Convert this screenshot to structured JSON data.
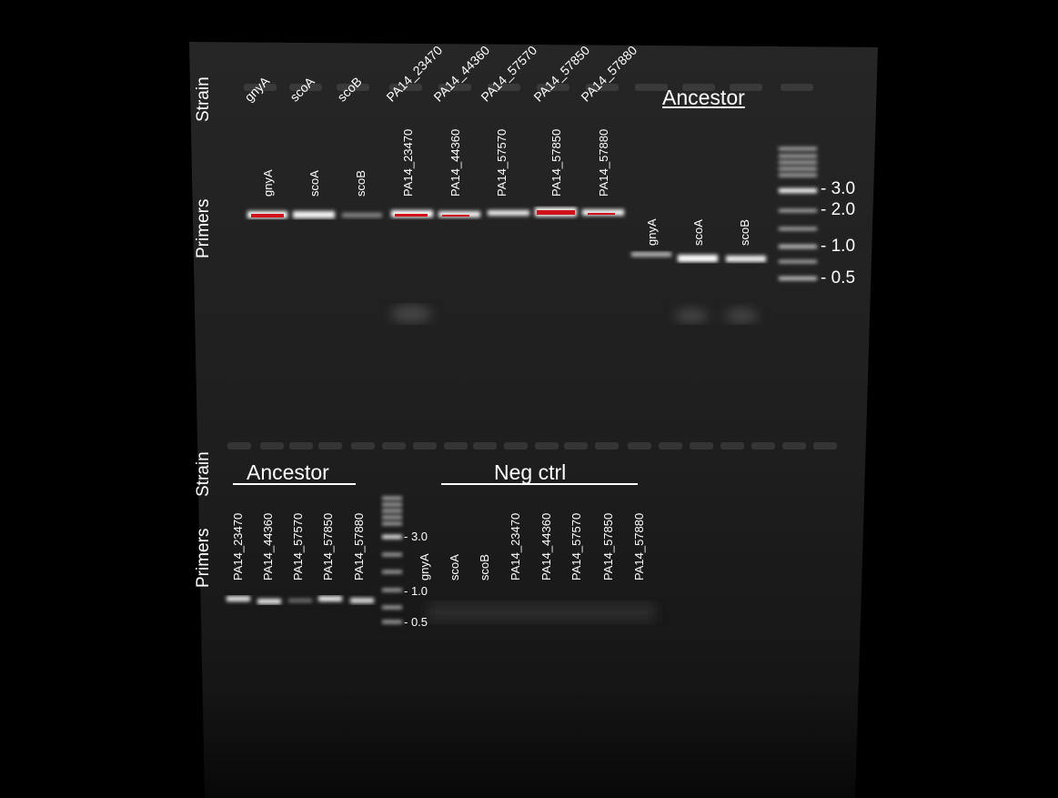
{
  "row_labels": {
    "top_strain": "Strain",
    "top_primers": "Primers",
    "bottom_strain": "Strain",
    "bottom_primers": "Primers"
  },
  "top": {
    "strains": [
      "gnyA",
      "scoA",
      "scoB",
      "PA14_23470",
      "PA14_44360",
      "PA14_57570",
      "PA14_57850",
      "PA14_57880"
    ],
    "primers": [
      "gnyA",
      "scoA",
      "scoB",
      "PA14_23470",
      "PA14_44360",
      "PA14_57570",
      "PA14_57850",
      "PA14_57880"
    ],
    "ancestor_title": "Ancestor",
    "ancestor_primers": [
      "gnyA",
      "scoA",
      "scoB"
    ],
    "ladder_labels": [
      "- 3.0",
      "- 2.0",
      "- 1.0",
      "- 0.5"
    ]
  },
  "bottom": {
    "ancestor_title": "Ancestor",
    "ancestor_primers": [
      "PA14_23470",
      "PA14_44360",
      "PA14_57570",
      "PA14_57850",
      "PA14_57880"
    ],
    "ladder_labels": [
      "- 3.0",
      "- 1.0",
      "- 0.5"
    ],
    "neg_title": "Neg ctrl",
    "neg_primers": [
      "gnyA",
      "scoA",
      "scoB",
      "PA14_23470",
      "PA14_44360",
      "PA14_57570",
      "PA14_57850",
      "PA14_57880"
    ]
  },
  "colors": {
    "background": "#000000",
    "gel": "#1c1c1c",
    "band": "#ffffff",
    "saturated": "#d0101a"
  }
}
